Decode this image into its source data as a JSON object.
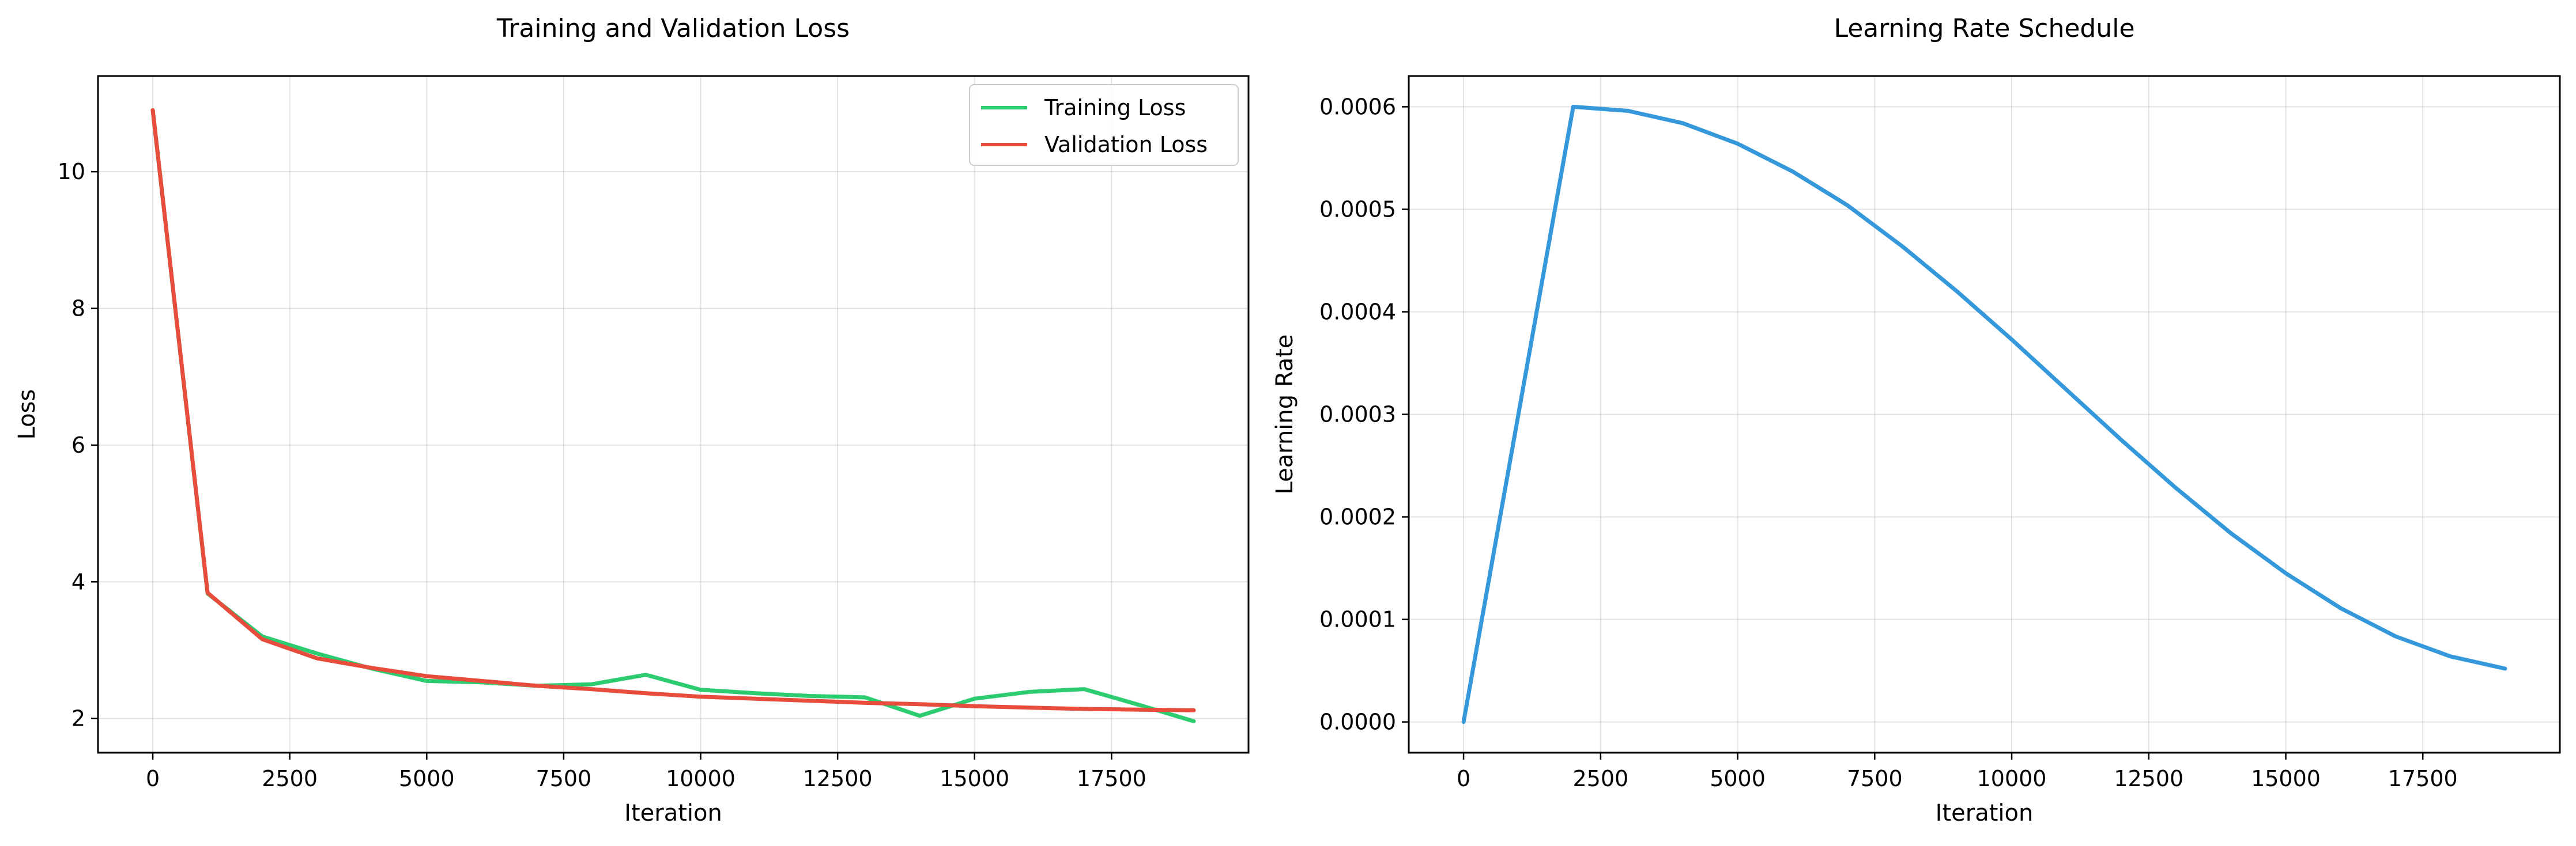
{
  "chart_data": [
    {
      "type": "line",
      "title": "Training and Validation Loss",
      "xlabel": "Iteration",
      "ylabel": "Loss",
      "xlim": [
        -1000,
        20000
      ],
      "ylim": [
        1.5,
        11.4
      ],
      "xticks": [
        0,
        2500,
        5000,
        7500,
        10000,
        12500,
        15000,
        17500
      ],
      "yticks": [
        2,
        4,
        6,
        8,
        10
      ],
      "grid": true,
      "legend": "top-right",
      "x": [
        0,
        1000,
        2000,
        3000,
        4000,
        5000,
        6000,
        7000,
        8000,
        9000,
        10000,
        11000,
        12000,
        13000,
        14000,
        15000,
        16000,
        17000,
        18000,
        19000
      ],
      "series": [
        {
          "name": "Training Loss",
          "color": "#2ecc71",
          "values": [
            10.9,
            3.83,
            3.2,
            2.95,
            2.73,
            2.55,
            2.53,
            2.48,
            2.5,
            2.64,
            2.42,
            2.37,
            2.33,
            2.31,
            2.04,
            2.29,
            2.39,
            2.43,
            2.2,
            1.96
          ]
        },
        {
          "name": "Validation Loss",
          "color": "#e74c3c",
          "values": [
            10.9,
            3.84,
            3.16,
            2.88,
            2.74,
            2.62,
            2.55,
            2.48,
            2.43,
            2.37,
            2.32,
            2.29,
            2.26,
            2.23,
            2.21,
            2.18,
            2.16,
            2.14,
            2.13,
            2.12
          ]
        }
      ]
    },
    {
      "type": "line",
      "title": "Learning Rate Schedule",
      "xlabel": "Iteration",
      "ylabel": "Learning Rate",
      "xlim": [
        -1000,
        20000
      ],
      "ylim": [
        -3e-05,
        0.00063
      ],
      "xticks": [
        0,
        2500,
        5000,
        7500,
        10000,
        12500,
        15000,
        17500
      ],
      "yticks": [
        0,
        0.0001,
        0.0002,
        0.0003,
        0.0004,
        0.0005,
        0.0006
      ],
      "ytick_labels": [
        "0.0000",
        "0.0001",
        "0.0002",
        "0.0003",
        "0.0004",
        "0.0005",
        "0.0006"
      ],
      "grid": true,
      "x": [
        0,
        1000,
        2000,
        3000,
        4000,
        5000,
        6000,
        7000,
        8000,
        9000,
        10000,
        11000,
        12000,
        13000,
        14000,
        15000,
        16000,
        17000,
        18000,
        19000
      ],
      "series": [
        {
          "color": "#3498db",
          "values": [
            0.0,
            0.0003,
            0.0006,
            0.000596,
            0.000584,
            0.000564,
            0.000537,
            0.000504,
            0.000464,
            0.00042,
            0.000373,
            0.000324,
            0.000275,
            0.000228,
            0.000184,
            0.000145,
            0.000111,
            8.35e-05,
            6.4e-05,
            5.2e-05
          ]
        }
      ]
    }
  ]
}
